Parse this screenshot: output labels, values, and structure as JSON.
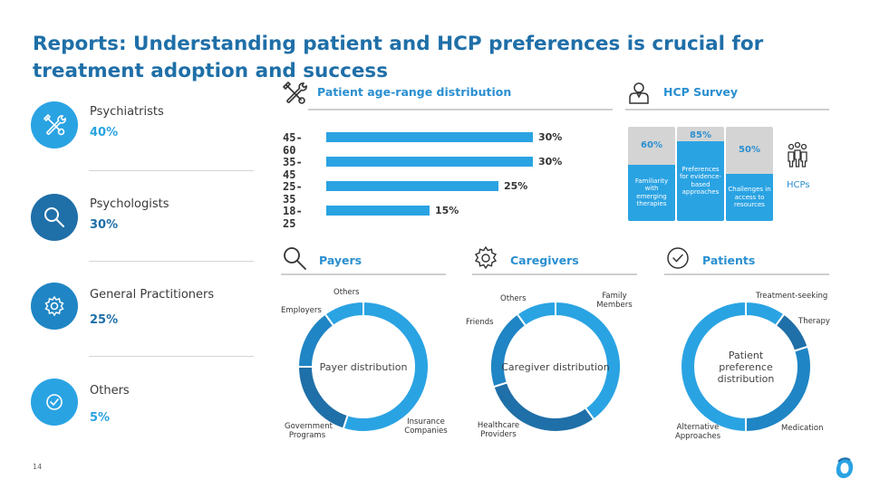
{
  "title": "Reports: Understanding patient and HCP preferences is crucial for treatment adoption and success",
  "roles": [
    {
      "name": "Psychiatrists",
      "pct": "40%",
      "icon": "tools-icon",
      "color": "#2aa3e3",
      "pct_color": "#2aa3e3"
    },
    {
      "name": "Psychologists",
      "pct": "30%",
      "icon": "magnifier-icon",
      "color": "#1f6fa8",
      "pct_color": "#1f6fa8"
    },
    {
      "name": "General Practitioners",
      "pct": "25%",
      "icon": "gear-icon",
      "color": "#1f85c4",
      "pct_color": "#1f6fa8"
    },
    {
      "name": "Others",
      "pct": "5%",
      "icon": "check-icon",
      "color": "#2aa3e3",
      "pct_color": "#2aa3e3"
    }
  ],
  "sections": {
    "age": {
      "label": "Patient age-range distribution",
      "icon": "tools-icon"
    },
    "hcp": {
      "label": "HCP Survey",
      "icon": "person-icon"
    },
    "payers": {
      "label": "Payers",
      "icon": "magnifier-icon"
    },
    "caregivers": {
      "label": "Caregivers",
      "icon": "gear-icon"
    },
    "patients": {
      "label": "Patients",
      "icon": "check-icon"
    }
  },
  "chart_data": [
    {
      "type": "bar",
      "orientation": "horizontal",
      "title": "Patient age-range distribution",
      "categories": [
        "45-60",
        "35-45",
        "25-35",
        "18-25"
      ],
      "values": [
        30,
        30,
        25,
        15
      ],
      "value_labels": [
        "30%",
        "30%",
        "25%",
        "15%"
      ],
      "xlim": [
        0,
        30
      ],
      "grid": false
    },
    {
      "type": "bar",
      "orientation": "vertical",
      "title": "HCP Survey",
      "categories": [
        "Familiarity with emerging therapies",
        "Preferences for evidence-based approaches",
        "Challenges in access to resources"
      ],
      "values": [
        60,
        85,
        50
      ],
      "value_labels": [
        "60%",
        "85%",
        "50%"
      ],
      "ylim": [
        0,
        100
      ],
      "side_label": "HCPs"
    },
    {
      "type": "pie",
      "center_label": "Payer distribution",
      "slices": [
        {
          "label": "Insurance Companies",
          "value": 55,
          "color": "#2aa3e3"
        },
        {
          "label": "Government Programs",
          "value": 20,
          "color": "#1f6fa8"
        },
        {
          "label": "Employers",
          "value": 15,
          "color": "#1f85c4"
        },
        {
          "label": "Others",
          "value": 10,
          "color": "#2aa3e3"
        }
      ]
    },
    {
      "type": "pie",
      "center_label": "Caregiver distribution",
      "slices": [
        {
          "label": "Family Members",
          "value": 40,
          "color": "#2aa3e3"
        },
        {
          "label": "Healthcare Providers",
          "value": 30,
          "color": "#1f6fa8"
        },
        {
          "label": "Friends",
          "value": 20,
          "color": "#1f85c4"
        },
        {
          "label": "Others",
          "value": 10,
          "color": "#2aa3e3"
        }
      ]
    },
    {
      "type": "pie",
      "center_label": "Patient preference distribution",
      "slices": [
        {
          "label": "Treatment-seeking",
          "value": 10,
          "color": "#2aa3e3"
        },
        {
          "label": "Therapy",
          "value": 10,
          "color": "#1f6fa8"
        },
        {
          "label": "Medication",
          "value": 30,
          "color": "#1f85c4"
        },
        {
          "label": "Alternative Approaches",
          "value": 50,
          "color": "#2aa3e3"
        }
      ]
    }
  ],
  "page_number": "14"
}
